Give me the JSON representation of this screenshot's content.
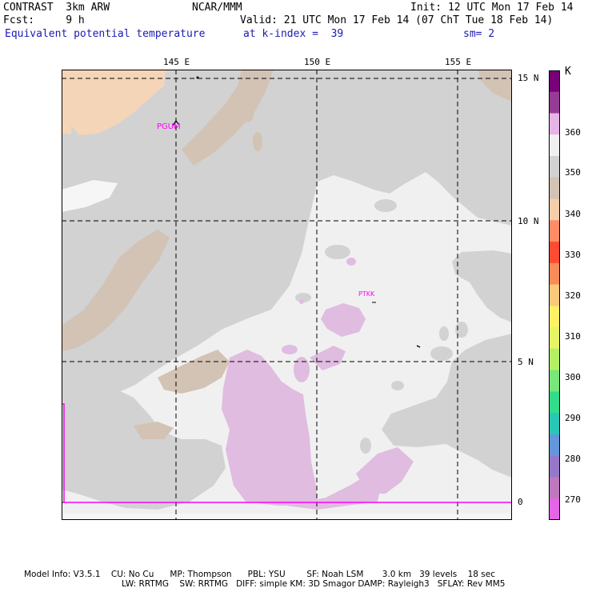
{
  "header": {
    "model": "CONTRAST  3km ARW",
    "center": "NCAR/MMM",
    "init": "Init: 12 UTC Mon 17 Feb 14",
    "fcst": "Fcst:     9 h",
    "valid": "Valid: 21 UTC Mon 17 Feb 14 (07 ChT Tue 18 Feb 14)",
    "field": "Equivalent potential temperature",
    "level": "at k-index =  39",
    "smooth": "sm= 2"
  },
  "map": {
    "lon_labels": [
      "145 E",
      "150 E",
      "155 E"
    ],
    "lat_labels": [
      "15 N",
      "10 N",
      "5 N",
      "0"
    ],
    "stations": [
      "PGUM",
      "PTKK"
    ]
  },
  "legend": {
    "unit": "K",
    "labels": [
      "360",
      "350",
      "340",
      "330",
      "320",
      "310",
      "300",
      "290",
      "280",
      "270"
    ],
    "colors": [
      "#780078",
      "#963c96",
      "#e6b4e6",
      "#f0f0f0",
      "#d2d2d2",
      "#d2c3b4",
      "#f5cdaa",
      "#ff8c64",
      "#ff4b32",
      "#fa8c5a",
      "#fac878",
      "#fff064",
      "#e6f564",
      "#b4f064",
      "#78e678",
      "#32dc8c",
      "#28c8b4",
      "#6496dc",
      "#9678c8",
      "#be78be",
      "#e664e6"
    ]
  },
  "footer": {
    "line1": "Model Info: V3.5.1    CU: No Cu      MP: Thompson      PBL: YSU        SF: Noah LSM       3.0 km   39 levels    18 sec",
    "line2": "LW: RRTMG    SW: RRTMG   DIFF: simple KM: 3D Smagor DAMP: Rayleigh3   SFLAY: Rev MM5"
  }
}
